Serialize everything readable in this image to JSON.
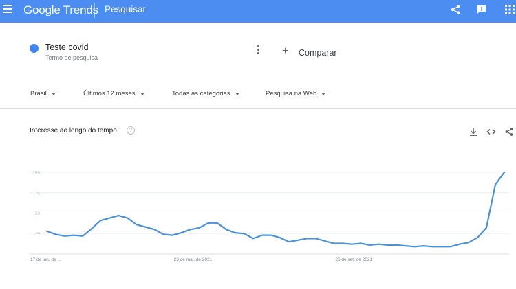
{
  "header": {
    "logo_google": "Google",
    "logo_trends": "Trends",
    "search_label": "Pesquisar",
    "icons": [
      "menu-icon",
      "share-icon",
      "feedback-icon",
      "apps-icon"
    ]
  },
  "term": {
    "name": "Teste covid",
    "type": "Termo de pesquisa",
    "color": "#4285f4"
  },
  "compare": {
    "plus": "+",
    "label": "Comparar"
  },
  "filters": {
    "region": "Brasil",
    "period": "Últimos 12 meses",
    "category": "Todas as categorias",
    "search_type": "Pesquisa na Web"
  },
  "panel": {
    "title": "Interesse ao longo do tempo",
    "help": "?",
    "icons": [
      "download-icon",
      "embed-icon",
      "share-icon"
    ]
  },
  "chart_data": {
    "type": "line",
    "title": "Interesse ao longo do tempo",
    "y_ticks": [
      "100",
      "75",
      "50",
      "25"
    ],
    "y_tick_values": [
      100,
      75,
      50,
      25
    ],
    "ylim": [
      0,
      100
    ],
    "x_ticks": [
      "17 de jan. de ...",
      "23 de mai. de 2021",
      "26 de set. de 2021"
    ],
    "x_tick_positions": [
      0,
      17,
      35
    ],
    "grid": true,
    "series_color": "#4a90d9",
    "values": [
      28,
      24,
      22,
      23,
      22,
      31,
      41,
      44,
      47,
      44,
      36,
      33,
      30,
      24,
      23,
      26,
      30,
      32,
      38,
      38,
      30,
      26,
      25,
      19,
      23,
      23,
      20,
      15,
      17,
      19,
      19,
      16,
      13,
      13,
      12,
      13,
      11,
      12,
      11,
      11,
      10,
      9,
      10,
      9,
      9,
      9,
      12,
      14,
      20,
      32,
      85,
      100
    ]
  }
}
